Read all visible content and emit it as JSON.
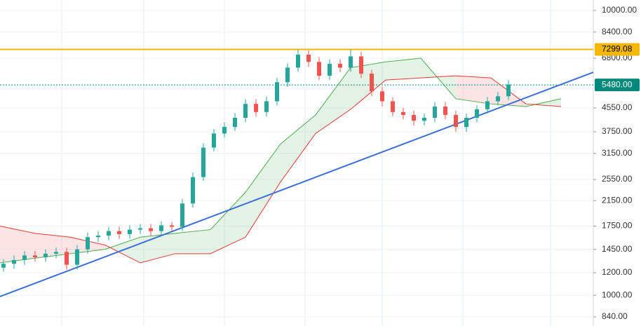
{
  "chart_data": {
    "type": "candlestick",
    "log_scale": true,
    "grid": true,
    "ylim": [
      780,
      10888
    ],
    "yticks": [
      {
        "value": 10000,
        "label": "10000.00"
      },
      {
        "value": 8400,
        "label": "8400.00"
      },
      {
        "value": 6800,
        "label": "6800.00"
      },
      {
        "value": 4550,
        "label": "4550.00"
      },
      {
        "value": 3750,
        "label": "3750.00"
      },
      {
        "value": 3150,
        "label": "3150.00"
      },
      {
        "value": 2550,
        "label": "2550.00"
      },
      {
        "value": 2150,
        "label": "2150.00"
      },
      {
        "value": 1750,
        "label": "1750.00"
      },
      {
        "value": 1450,
        "label": "1450.00"
      },
      {
        "value": 1200,
        "label": "1200.00"
      },
      {
        "value": 1000,
        "label": "1000.00"
      },
      {
        "value": 840,
        "label": "840.00"
      }
    ],
    "open": [
      1250,
      1290,
      1330,
      1380,
      1360,
      1400,
      1420,
      1280,
      1450,
      1600,
      1620,
      1680,
      1640,
      1700,
      1720,
      1680,
      1760,
      1740,
      2100,
      2600,
      3300,
      3700,
      3900,
      4200,
      4700,
      4400,
      4800,
      5600,
      6300,
      7000,
      6600,
      5900,
      6500,
      6300,
      6900,
      6000,
      5200,
      4800,
      4400,
      4300,
      4100,
      4200,
      4600,
      4300,
      3900,
      4200,
      4500,
      4800,
      5000
    ],
    "high": [
      1340,
      1380,
      1430,
      1430,
      1450,
      1470,
      1470,
      1500,
      1660,
      1680,
      1740,
      1740,
      1760,
      1780,
      1780,
      1820,
      1810,
      2180,
      2700,
      3420,
      3840,
      4050,
      4360,
      4880,
      4880,
      4980,
      5800,
      6520,
      7299,
      7250,
      6850,
      6740,
      6750,
      7299,
      7150,
      6200,
      5400,
      4950,
      4550,
      4450,
      4350,
      4770,
      4770,
      4450,
      4350,
      4650,
      4970,
      5180,
      5700
    ],
    "low": [
      1210,
      1240,
      1280,
      1310,
      1310,
      1350,
      1230,
      1230,
      1400,
      1540,
      1560,
      1580,
      1580,
      1640,
      1620,
      1620,
      1680,
      1680,
      2030,
      2520,
      3200,
      3580,
      3780,
      4060,
      4240,
      4250,
      4640,
      5400,
      6100,
      6350,
      5700,
      5700,
      6080,
      6100,
      5800,
      5000,
      4600,
      4250,
      4150,
      3950,
      3950,
      4050,
      4150,
      3750,
      3750,
      4050,
      4350,
      4650,
      4850
    ],
    "close": [
      1290,
      1330,
      1380,
      1360,
      1400,
      1420,
      1280,
      1450,
      1600,
      1620,
      1680,
      1640,
      1700,
      1720,
      1680,
      1760,
      1740,
      2100,
      2600,
      3300,
      3700,
      3900,
      4200,
      4700,
      4400,
      4800,
      5600,
      6300,
      7000,
      6600,
      5900,
      6500,
      6300,
      6900,
      6000,
      5200,
      4800,
      4400,
      4300,
      4100,
      4200,
      4600,
      4300,
      3900,
      4200,
      4500,
      4800,
      5000,
      5500
    ],
    "up_color": "#26a69a",
    "down_color": "#ef5350",
    "series": [
      {
        "color": "#4caf50",
        "values": [
          1300,
          1350,
          1400,
          1450,
          1600,
          1650,
          1700,
          2300,
          3400,
          4300,
          6300,
          6600,
          6800,
          4900,
          4700,
          4600,
          4900
        ]
      },
      {
        "color": "#e53935",
        "values": [
          1750,
          1650,
          1600,
          1500,
          1300,
          1400,
          1400,
          1600,
          2500,
          3700,
          4500,
          5700,
          5800,
          5900,
          5800,
          4700,
          4600
        ]
      }
    ],
    "trendline": {
      "color": "#3b6fd4",
      "values": [
        990,
        6070
      ]
    },
    "price_lines": [
      {
        "value": 7299.08,
        "label": "7299.08",
        "color": "#f5b700"
      },
      {
        "value": 5480,
        "label": "5480.00",
        "color": "#00897b"
      }
    ]
  }
}
